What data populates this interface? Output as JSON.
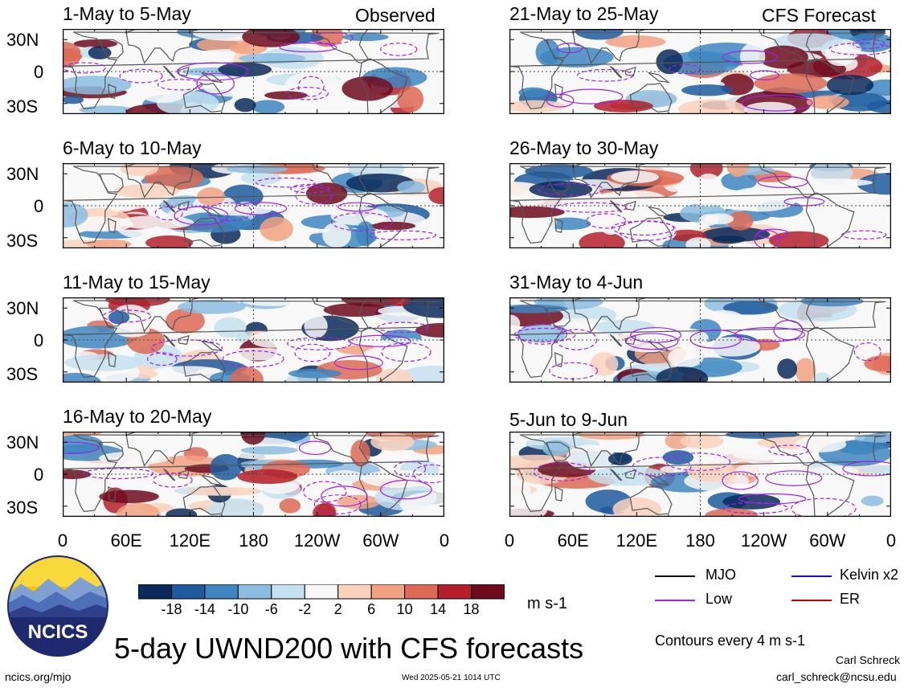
{
  "columns": {
    "left_label": "Observed",
    "right_label": "CFS Forecast"
  },
  "panels": [
    {
      "title": "1-May to 5-May",
      "column": "observed"
    },
    {
      "title": "6-May to 10-May",
      "column": "observed"
    },
    {
      "title": "11-May to 15-May",
      "column": "observed"
    },
    {
      "title": "16-May to 20-May",
      "column": "observed"
    },
    {
      "title": "21-May to 25-May",
      "column": "forecast"
    },
    {
      "title": "26-May to 30-May",
      "column": "forecast"
    },
    {
      "title": "31-May to 4-Jun",
      "column": "forecast"
    },
    {
      "title": "5-Jun to 9-Jun",
      "column": "forecast"
    }
  ],
  "chart_data": {
    "type": "heatmap",
    "title": "5-day UWND200 with CFS forecasts",
    "variable": "200-hPa zonal wind anomaly",
    "units": "m s-1",
    "y_ticks": [
      "30N",
      "0",
      "30S"
    ],
    "x_ticks": [
      "0",
      "60E",
      "120E",
      "180",
      "120W",
      "60W",
      "0"
    ],
    "lat_range": [
      -40,
      40
    ],
    "lon_range": [
      0,
      360
    ],
    "colorbar": {
      "levels": [
        "-18",
        "-14",
        "-10",
        "-6",
        "-2",
        "2",
        "6",
        "10",
        "14",
        "18"
      ],
      "colors": [
        "#0b2a5b",
        "#1d5a9e",
        "#3f86c0",
        "#8cbde0",
        "#c6e0f0",
        "#f8f8f8",
        "#fbd2bd",
        "#f2a283",
        "#dc6a56",
        "#b3202c",
        "#6e0a1e"
      ]
    },
    "contour_note": "Contours every 4 m s-1",
    "legend": [
      {
        "label": "MJO",
        "color": "#000000"
      },
      {
        "label": "Kelvin x2",
        "color": "#1010e0"
      },
      {
        "label": "Low",
        "color": "#a020f0"
      },
      {
        "label": "ER",
        "color": "#c00000"
      }
    ]
  },
  "footer": {
    "logo_text": "NCICS",
    "left_url": "ncics.org/mjo",
    "timestamp": "Wed 2025-05-21 1014 UTC",
    "author": "Carl Schreck",
    "email": "carl_schreck@ncsu.edu"
  }
}
